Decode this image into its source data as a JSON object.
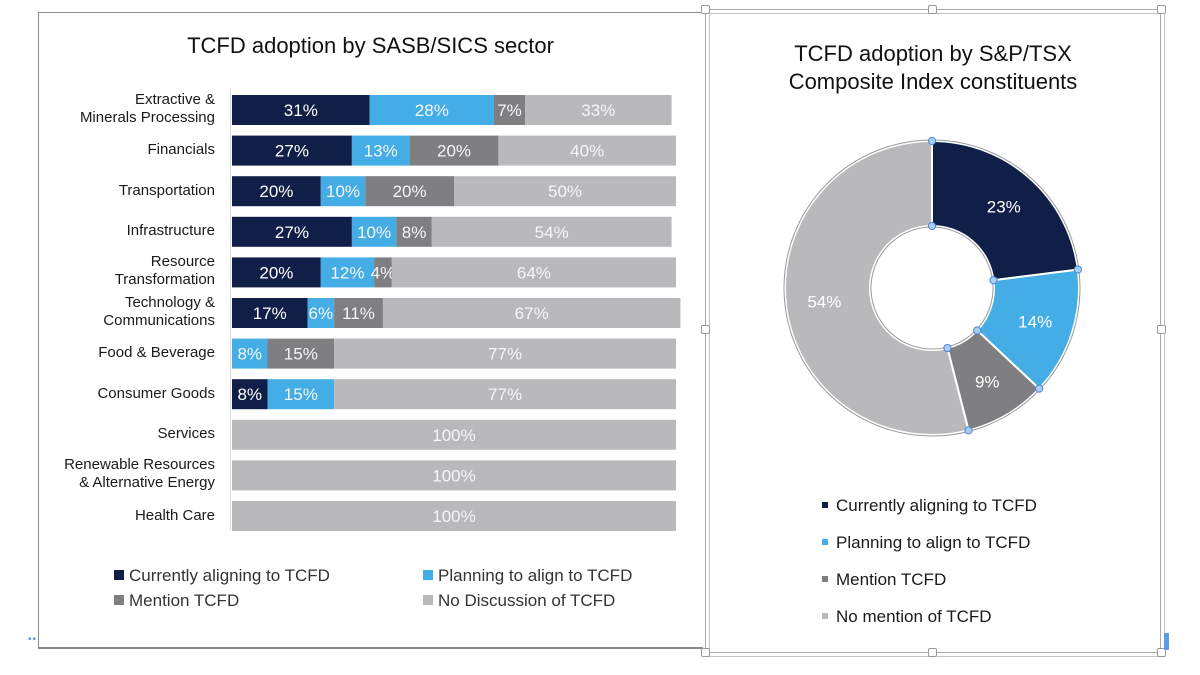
{
  "colors": {
    "currently": "#0f1f47",
    "planning": "#45ade6",
    "mention": "#7f7f81",
    "none": "#b9b9bc"
  },
  "chart_data": [
    {
      "type": "bar",
      "orientation": "horizontal",
      "stacked": true,
      "title": "TCFD adoption by SASB/SICS sector",
      "xlabel": "",
      "ylabel": "",
      "xlim": [
        0,
        100
      ],
      "grid": false,
      "legend_position": "bottom",
      "categories": [
        "Extractive & Minerals Processing",
        "Financials",
        "Transportation",
        "Infrastructure",
        "Resource Transformation",
        "Technology & Communications",
        "Food & Beverage",
        "Consumer Goods",
        "Services",
        "Renewable Resources & Alternative Energy",
        "Health Care"
      ],
      "category_lines": [
        [
          "Extractive &",
          "Minerals Processing"
        ],
        [
          "Financials"
        ],
        [
          "Transportation"
        ],
        [
          "Infrastructure"
        ],
        [
          "Resource",
          "Transformation"
        ],
        [
          "Technology &",
          "Communications"
        ],
        [
          "Food & Beverage"
        ],
        [
          "Consumer Goods"
        ],
        [
          "Services"
        ],
        [
          "Renewable Resources",
          "& Alternative Energy"
        ],
        [
          "Health Care"
        ]
      ],
      "series": [
        {
          "name": "Currently aligning to TCFD",
          "key": "currently",
          "values": [
            31,
            27,
            20,
            27,
            20,
            17,
            0,
            8,
            0,
            0,
            0
          ]
        },
        {
          "name": "Planning to align to TCFD",
          "key": "planning",
          "values": [
            28,
            13,
            10,
            10,
            12,
            6,
            8,
            15,
            0,
            0,
            0
          ]
        },
        {
          "name": "Mention TCFD",
          "key": "mention",
          "values": [
            7,
            20,
            20,
            8,
            4,
            11,
            15,
            0,
            0,
            0,
            0
          ]
        },
        {
          "name": "No Discussion of TCFD",
          "key": "none",
          "values": [
            33,
            40,
            50,
            54,
            64,
            67,
            77,
            77,
            100,
            100,
            100
          ]
        }
      ]
    },
    {
      "type": "pie",
      "donut": true,
      "title": "TCFD adoption by S&P/TSX Composite Index constituents",
      "title_lines": [
        "TCFD adoption by S&P/TSX",
        "Composite Index constituents"
      ],
      "legend_position": "bottom",
      "slices": [
        {
          "label": "Currently aligning to TCFD",
          "key": "currently",
          "value": 23
        },
        {
          "label": "Planning to align to TCFD",
          "key": "planning",
          "value": 14
        },
        {
          "label": "Mention TCFD",
          "key": "mention",
          "value": 9
        },
        {
          "label": "No mention of TCFD",
          "key": "none",
          "value": 54
        }
      ]
    }
  ],
  "bar_legend": [
    {
      "label": "Currently aligning to TCFD",
      "key": "currently"
    },
    {
      "label": "Planning to align to TCFD",
      "key": "planning"
    },
    {
      "label": "Mention TCFD",
      "key": "mention"
    },
    {
      "label": "No Discussion of TCFD",
      "key": "none"
    }
  ],
  "donut_legend": [
    {
      "label": "Currently aligning to TCFD",
      "key": "currently"
    },
    {
      "label": "Planning to align to TCFD",
      "key": "planning"
    },
    {
      "label": "Mention TCFD",
      "key": "mention"
    },
    {
      "label": "No mention of TCFD",
      "key": "none"
    }
  ],
  "misc": {
    "left_dots": "••"
  }
}
